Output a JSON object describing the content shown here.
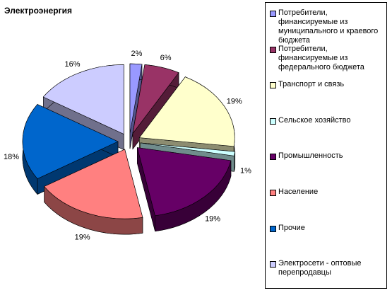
{
  "chart_data": {
    "type": "pie",
    "title": "Электроэнергия",
    "categories": [
      "Потребители, финансируемые из муниципального и краевого бюджета",
      "Потребители, финансируемые из федерального бюджета",
      "Транспорт и связь",
      "Сельское хозяйство",
      "Промышленность",
      "Население",
      "Прочие",
      "Электросети - оптовые перепродавцы"
    ],
    "values": [
      2,
      6,
      19,
      1,
      19,
      19,
      18,
      16
    ],
    "value_labels": [
      "2%",
      "6%",
      "19%",
      "1%",
      "19%",
      "19%",
      "18%",
      "16%"
    ],
    "colors": [
      "#9999ff",
      "#993366",
      "#ffffcc",
      "#ccffff",
      "#660066",
      "#ff8080",
      "#0066cc",
      "#ccccff"
    ],
    "legend": "right"
  }
}
